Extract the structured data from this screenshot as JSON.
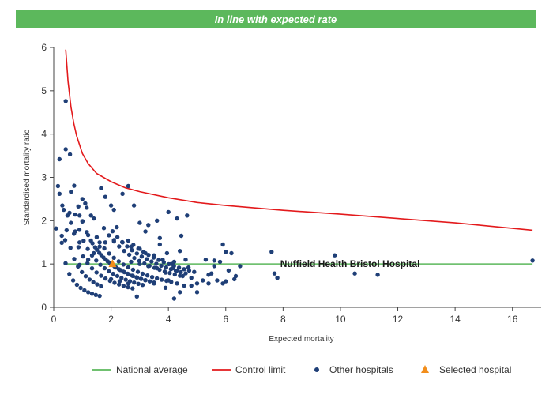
{
  "banner": {
    "text": "In line with expected rate",
    "color": "#5cb85c"
  },
  "colors": {
    "national_average": "#5cb85c",
    "control_limit": "#e31a1c",
    "other_hospitals": "#1f3f77",
    "selected_hospital": "#f28e1c"
  },
  "chart_data": {
    "type": "scatter",
    "xlabel": "Expected mortality",
    "ylabel": "Standardised mortality ratio",
    "xlim": [
      0,
      17
    ],
    "ylim": [
      0,
      6
    ],
    "xticks": [
      0,
      2,
      4,
      6,
      8,
      10,
      12,
      14,
      16
    ],
    "yticks": [
      0,
      1,
      2,
      3,
      4,
      5,
      6
    ],
    "grid": false,
    "legend_position": "bottom",
    "national_average": {
      "name": "National average",
      "y": 1,
      "x_range": [
        0.4,
        16.7
      ]
    },
    "control_limit": {
      "name": "Control limit",
      "x": [
        0.42,
        0.5,
        0.6,
        0.7,
        0.8,
        1.0,
        1.2,
        1.5,
        2.0,
        2.5,
        3.0,
        4.0,
        5.0,
        6.0,
        8.0,
        10.0,
        12.0,
        14.0,
        16.7
      ],
      "y": [
        5.95,
        5.22,
        4.63,
        4.25,
        3.96,
        3.55,
        3.32,
        3.09,
        2.9,
        2.76,
        2.67,
        2.53,
        2.42,
        2.35,
        2.24,
        2.15,
        2.05,
        1.95,
        1.78
      ]
    },
    "other_hospitals": {
      "name": "Other hospitals",
      "points": [
        [
          0.2,
          3.42
        ],
        [
          0.42,
          3.65
        ],
        [
          0.2,
          2.62
        ],
        [
          0.3,
          2.35
        ],
        [
          0.35,
          2.25
        ],
        [
          0.48,
          2.12
        ],
        [
          0.6,
          1.95
        ],
        [
          0.28,
          1.65
        ],
        [
          0.4,
          1.55
        ],
        [
          0.08,
          1.82
        ],
        [
          0.75,
          1.75
        ],
        [
          0.9,
          2.12
        ],
        [
          1.0,
          2.5
        ],
        [
          1.1,
          2.4
        ],
        [
          1.15,
          2.3
        ],
        [
          1.3,
          2.12
        ],
        [
          1.4,
          2.05
        ],
        [
          1.0,
          1.98
        ],
        [
          0.9,
          1.5
        ],
        [
          1.5,
          1.62
        ],
        [
          1.65,
          2.75
        ],
        [
          1.8,
          2.55
        ],
        [
          2.0,
          2.35
        ],
        [
          2.1,
          2.25
        ],
        [
          2.2,
          1.85
        ],
        [
          2.4,
          2.62
        ],
        [
          2.6,
          2.8
        ],
        [
          2.8,
          2.35
        ],
        [
          3.0,
          1.95
        ],
        [
          3.3,
          1.9
        ],
        [
          3.2,
          1.75
        ],
        [
          3.6,
          2.0
        ],
        [
          3.7,
          1.6
        ],
        [
          4.0,
          2.2
        ],
        [
          4.3,
          2.05
        ],
        [
          4.65,
          2.12
        ],
        [
          4.45,
          1.65
        ],
        [
          4.4,
          1.3
        ],
        [
          4.6,
          1.1
        ],
        [
          4.7,
          0.92
        ],
        [
          4.8,
          0.68
        ],
        [
          5.0,
          0.55
        ],
        [
          5.3,
          1.1
        ],
        [
          5.4,
          0.55
        ],
        [
          5.4,
          0.75
        ],
        [
          5.6,
          0.95
        ],
        [
          5.6,
          1.08
        ],
        [
          5.5,
          0.78
        ],
        [
          5.8,
          1.05
        ],
        [
          5.9,
          1.45
        ],
        [
          6.0,
          1.28
        ],
        [
          6.1,
          0.85
        ],
        [
          6.2,
          1.25
        ],
        [
          5.9,
          0.55
        ],
        [
          6.3,
          0.65
        ],
        [
          6.5,
          0.95
        ],
        [
          5.0,
          0.35
        ],
        [
          4.8,
          0.5
        ],
        [
          4.2,
          0.2
        ],
        [
          4.4,
          0.35
        ],
        [
          3.9,
          0.45
        ],
        [
          3.5,
          0.55
        ],
        [
          2.9,
          0.25
        ],
        [
          7.6,
          1.28
        ],
        [
          7.7,
          0.78
        ],
        [
          7.8,
          0.68
        ],
        [
          9.8,
          1.2
        ],
        [
          10.5,
          0.78
        ],
        [
          11.3,
          0.75
        ],
        [
          16.7,
          1.08
        ],
        [
          2.1,
          1.55
        ],
        [
          2.4,
          1.5
        ],
        [
          2.7,
          1.4
        ],
        [
          3.0,
          1.35
        ],
        [
          3.2,
          1.25
        ],
        [
          3.5,
          1.2
        ],
        [
          3.8,
          1.1
        ],
        [
          4.1,
          1.0
        ],
        [
          4.3,
          0.85
        ],
        [
          2.7,
          1.05
        ],
        [
          3.0,
          1.0
        ],
        [
          3.3,
          0.95
        ],
        [
          3.6,
          0.9
        ],
        [
          3.9,
          0.8
        ],
        [
          2.0,
          0.65
        ],
        [
          2.3,
          0.6
        ],
        [
          2.6,
          0.55
        ],
        [
          0.9,
          0.98
        ],
        [
          1.2,
          1.1
        ],
        [
          1.4,
          1.25
        ],
        [
          1.6,
          1.4
        ],
        [
          1.8,
          1.5
        ],
        [
          4.0,
          0.62
        ],
        [
          4.3,
          0.55
        ],
        [
          4.55,
          0.5
        ],
        [
          4.2,
          1.05
        ],
        [
          3.7,
          1.45
        ],
        [
          3.95,
          1.25
        ],
        [
          4.15,
          0.9
        ],
        [
          4.5,
          0.72
        ],
        [
          5.2,
          0.62
        ],
        [
          5.7,
          0.62
        ],
        [
          6.0,
          0.6
        ],
        [
          6.35,
          0.72
        ]
      ],
      "families": [
        {
          "k": 0.8,
          "x_from": 0.45,
          "x_to": 1.65,
          "count": 10
        },
        {
          "k": 1.2,
          "x_from": 0.55,
          "x_to": 2.75,
          "count": 15
        },
        {
          "k": 1.6,
          "x_from": 0.6,
          "x_to": 3.1,
          "count": 18
        },
        {
          "k": 2.0,
          "x_from": 0.42,
          "x_to": 3.2,
          "count": 20
        },
        {
          "k": 2.0,
          "x_from": 1.2,
          "x_to": 3.5,
          "count": 16
        },
        {
          "k": 2.4,
          "x_from": 1.6,
          "x_to": 4.1,
          "count": 16
        },
        {
          "k": 3.2,
          "x_from": 1.75,
          "x_to": 4.4,
          "count": 16
        },
        {
          "k": 3.6,
          "x_from": 2.05,
          "x_to": 4.6,
          "count": 16
        },
        {
          "k": 4.0,
          "x_from": 2.6,
          "x_to": 4.9,
          "count": 14
        },
        {
          "k": 0.42,
          "x_from": 0.15,
          "x_to": 1.6,
          "count": 12
        }
      ]
    },
    "selected_hospital": {
      "name": "Selected hospital",
      "label": "Nuffield Health Bristol Hospital",
      "x": 2.05,
      "y": 1.0
    }
  }
}
